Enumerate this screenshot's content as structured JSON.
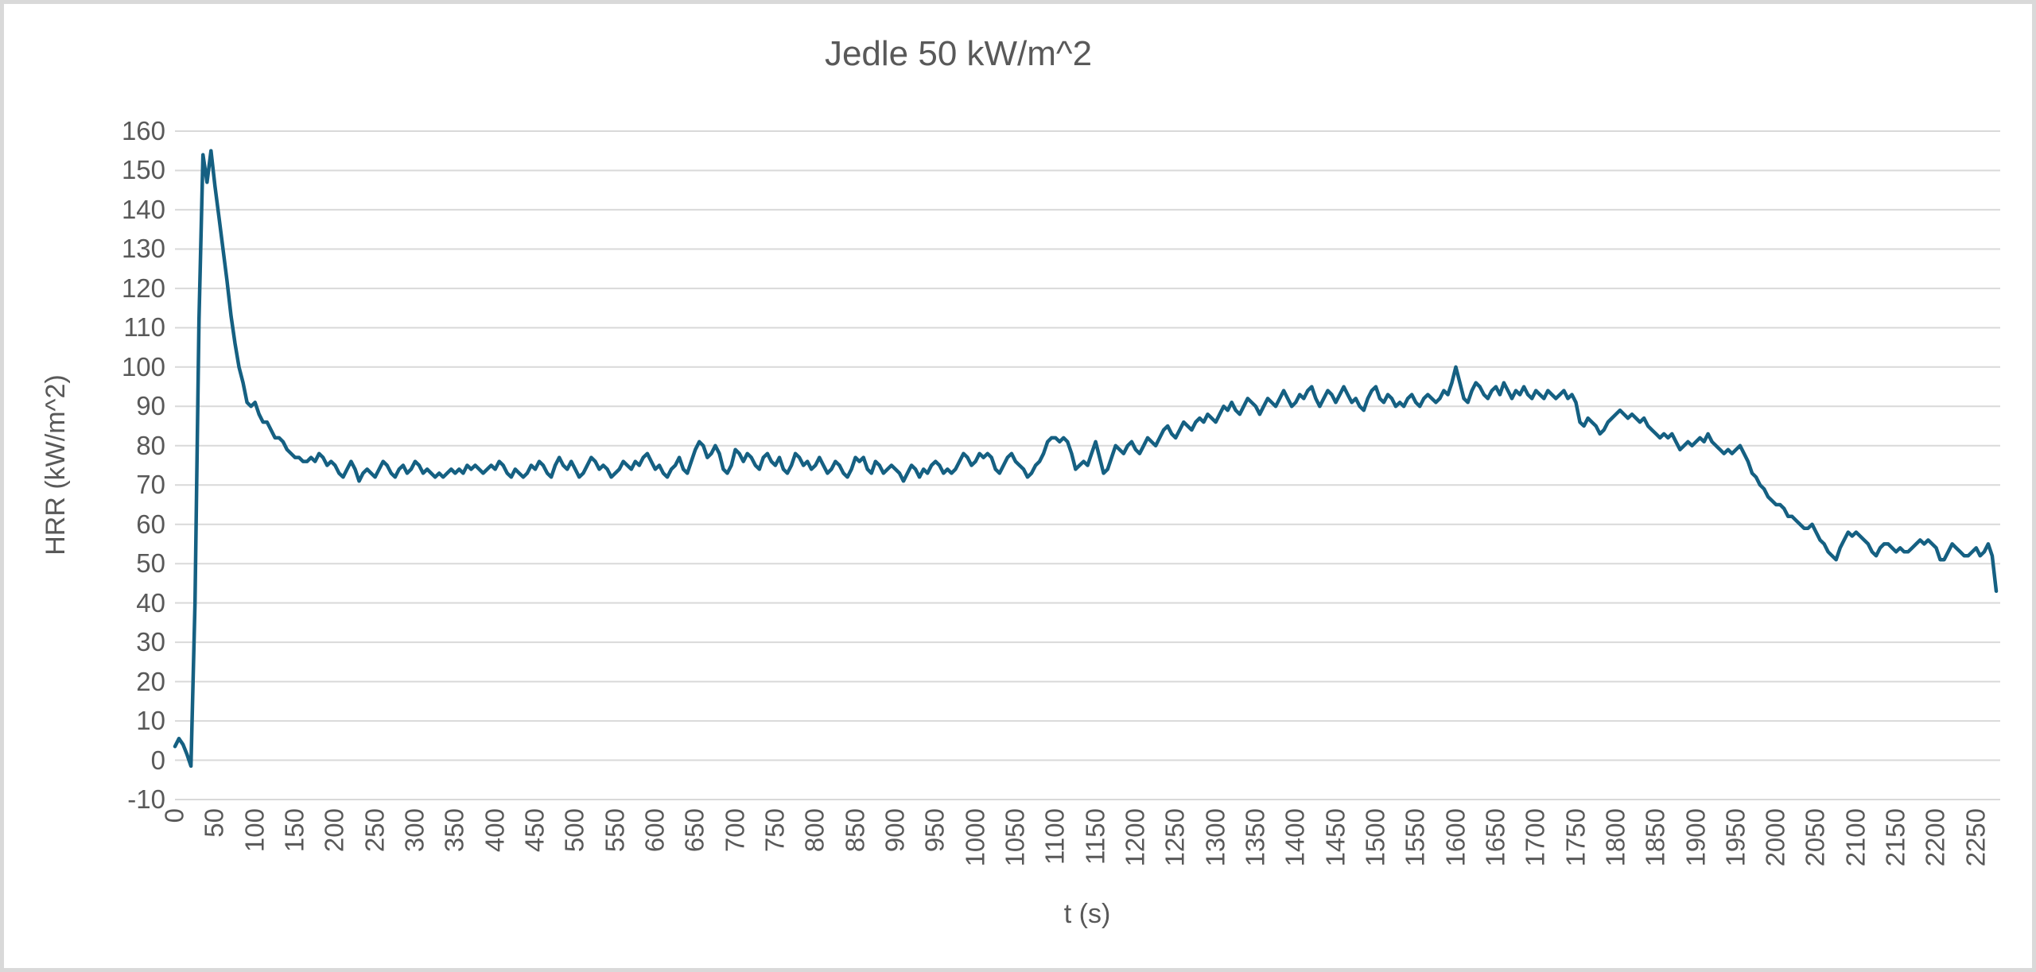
{
  "colors": {
    "line": "#156082",
    "gridline": "#D9D9D9",
    "text": "#595959",
    "frame_border": "#D9D9D9",
    "background": "#FFFFFF"
  },
  "chart_data": {
    "type": "line",
    "title": "Jedle 50 kW/m^2",
    "xlabel": "t (s)",
    "ylabel": "HRR (kW/m^2)",
    "xlim": [
      0,
      2280
    ],
    "ylim": [
      -10,
      160
    ],
    "grid": "horizontal",
    "legend": "none",
    "markers": false,
    "y_ticks": [
      -10,
      0,
      10,
      20,
      30,
      40,
      50,
      60,
      70,
      80,
      90,
      100,
      110,
      120,
      130,
      140,
      150,
      160
    ],
    "x_ticks": [
      0,
      50,
      100,
      150,
      200,
      250,
      300,
      350,
      400,
      450,
      500,
      550,
      600,
      650,
      700,
      750,
      800,
      850,
      900,
      950,
      1000,
      1050,
      1100,
      1150,
      1200,
      1250,
      1300,
      1350,
      1400,
      1450,
      1500,
      1550,
      1600,
      1650,
      1700,
      1750,
      1800,
      1850,
      1900,
      1950,
      2000,
      2050,
      2100,
      2150,
      2200,
      2250
    ],
    "series": [
      {
        "name": "HRR",
        "color": "#156082",
        "stroke_width": 4.5,
        "x_start": 0,
        "x_step": 5,
        "values": [
          3.5,
          5.5,
          4,
          1.5,
          -1.5,
          40,
          112,
          154,
          147,
          155,
          146,
          138,
          130,
          122,
          113,
          106,
          100,
          96,
          91,
          90,
          91,
          88,
          86,
          86,
          84,
          82,
          82,
          81,
          79,
          78,
          77,
          77,
          76,
          76,
          77,
          76,
          78,
          77,
          75,
          76,
          75,
          73,
          72,
          74,
          76,
          74,
          71,
          73,
          74,
          73,
          72,
          74,
          76,
          75,
          73,
          72,
          74,
          75,
          73,
          74,
          76,
          75,
          73,
          74,
          73,
          72,
          73,
          72,
          73,
          74,
          73,
          74,
          73,
          75,
          74,
          75,
          74,
          73,
          74,
          75,
          74,
          76,
          75,
          73,
          72,
          74,
          73,
          72,
          73,
          75,
          74,
          76,
          75,
          73,
          72,
          75,
          77,
          75,
          74,
          76,
          74,
          72,
          73,
          75,
          77,
          76,
          74,
          75,
          74,
          72,
          73,
          74,
          76,
          75,
          74,
          76,
          75,
          77,
          78,
          76,
          74,
          75,
          73,
          72,
          74,
          75,
          77,
          74,
          73,
          76,
          79,
          81,
          80,
          77,
          78,
          80,
          78,
          74,
          73,
          75,
          79,
          78,
          76,
          78,
          77,
          75,
          74,
          77,
          78,
          76,
          75,
          77,
          74,
          73,
          75,
          78,
          77,
          75,
          76,
          74,
          75,
          77,
          75,
          73,
          74,
          76,
          75,
          73,
          72,
          74,
          77,
          76,
          77,
          74,
          73,
          76,
          75,
          73,
          74,
          75,
          74,
          73,
          71,
          73,
          75,
          74,
          72,
          74,
          73,
          75,
          76,
          75,
          73,
          74,
          73,
          74,
          76,
          78,
          77,
          75,
          76,
          78,
          77,
          78,
          77,
          74,
          73,
          75,
          77,
          78,
          76,
          75,
          74,
          72,
          73,
          75,
          76,
          78,
          81,
          82,
          82,
          81,
          82,
          81,
          78,
          74,
          75,
          76,
          75,
          78,
          81,
          77,
          73,
          74,
          77,
          80,
          79,
          78,
          80,
          81,
          79,
          78,
          80,
          82,
          81,
          80,
          82,
          84,
          85,
          83,
          82,
          84,
          86,
          85,
          84,
          86,
          87,
          86,
          88,
          87,
          86,
          88,
          90,
          89,
          91,
          89,
          88,
          90,
          92,
          91,
          90,
          88,
          90,
          92,
          91,
          90,
          92,
          94,
          92,
          90,
          91,
          93,
          92,
          94,
          95,
          92,
          90,
          92,
          94,
          93,
          91,
          93,
          95,
          93,
          91,
          92,
          90,
          89,
          92,
          94,
          95,
          92,
          91,
          93,
          92,
          90,
          91,
          90,
          92,
          93,
          91,
          90,
          92,
          93,
          92,
          91,
          92,
          94,
          93,
          96,
          100,
          96,
          92,
          91,
          94,
          96,
          95,
          93,
          92,
          94,
          95,
          93,
          96,
          94,
          92,
          94,
          93,
          95,
          93,
          92,
          94,
          93,
          92,
          94,
          93,
          92,
          93,
          94,
          92,
          93,
          91,
          86,
          85,
          87,
          86,
          85,
          83,
          84,
          86,
          87,
          88,
          89,
          88,
          87,
          88,
          87,
          86,
          87,
          85,
          84,
          83,
          82,
          83,
          82,
          83,
          81,
          79,
          80,
          81,
          80,
          81,
          82,
          81,
          83,
          81,
          80,
          79,
          78,
          79,
          78,
          79,
          80,
          78,
          76,
          73,
          72,
          70,
          69,
          67,
          66,
          65,
          65,
          64,
          62,
          62,
          61,
          60,
          59,
          59,
          60,
          58,
          56,
          55,
          53,
          52,
          51,
          54,
          56,
          58,
          57,
          58,
          57,
          56,
          55,
          53,
          52,
          54,
          55,
          55,
          54,
          53,
          54,
          53,
          53,
          54,
          55,
          56,
          55,
          56,
          55,
          54,
          51,
          51,
          53,
          55,
          54,
          53,
          52,
          52,
          53,
          54,
          52,
          53,
          55,
          52,
          43
        ]
      }
    ]
  }
}
